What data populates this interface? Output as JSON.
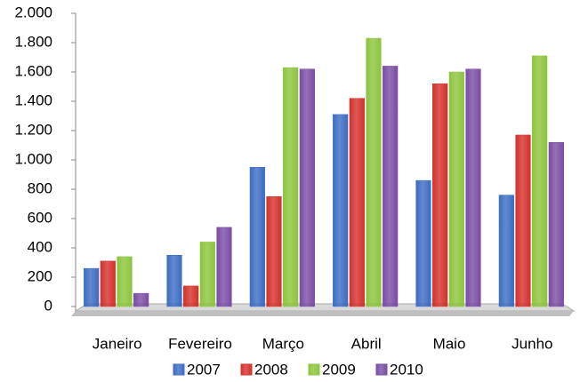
{
  "chart_data": {
    "type": "bar",
    "categories": [
      "Janeiro",
      "Fevereiro",
      "Março",
      "Abril",
      "Maio",
      "Junho"
    ],
    "series": [
      {
        "name": "2007",
        "color": "#3b6cc2",
        "values": [
          260,
          350,
          950,
          1310,
          860,
          760
        ]
      },
      {
        "name": "2008",
        "color": "#d4302a",
        "values": [
          310,
          140,
          750,
          1420,
          1520,
          1170
        ]
      },
      {
        "name": "2009",
        "color": "#8cc43c",
        "values": [
          340,
          440,
          1630,
          1830,
          1600,
          1710
        ]
      },
      {
        "name": "2010",
        "color": "#7a4ca4",
        "values": [
          90,
          540,
          1620,
          1640,
          1620,
          1120
        ]
      }
    ],
    "ylim": [
      0,
      2000
    ],
    "yticks": [
      0,
      200,
      400,
      600,
      800,
      {
        "value": 1000,
        "label": "1.000"
      },
      {
        "value": 1200,
        "label": "1.200"
      },
      {
        "value": 1400,
        "label": "1.400"
      },
      {
        "value": 1600,
        "label": "1.600"
      },
      {
        "value": 1800,
        "label": "1.800"
      },
      {
        "value": 2000,
        "label": "2.000"
      }
    ],
    "grid": false,
    "legend": "bottom"
  }
}
